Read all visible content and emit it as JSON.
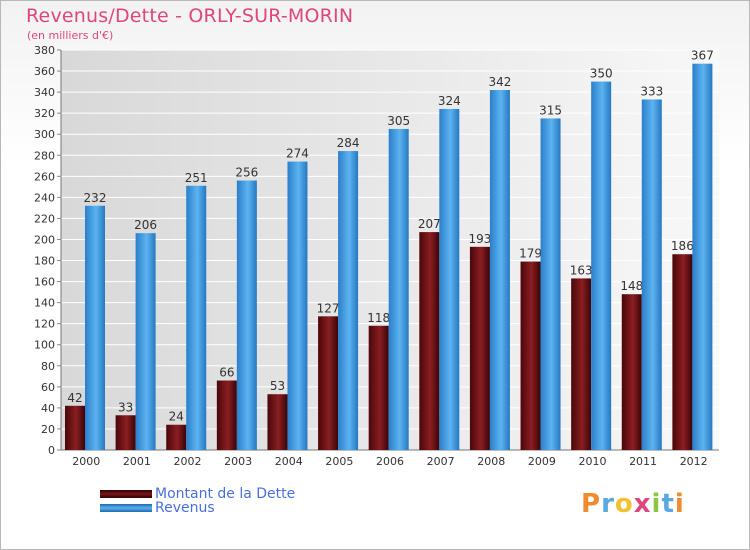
{
  "colors": {
    "title": "#e0457b",
    "dette": "#7a1418",
    "revenus": "#3a93dd",
    "legend_text": "#4a6fdc"
  },
  "chart_data": {
    "type": "bar",
    "title": "Revenus/Dette - ORLY-SUR-MORIN",
    "subtitle": "(en milliers d'€)",
    "categories": [
      "2000",
      "2001",
      "2002",
      "2003",
      "2004",
      "2005",
      "2006",
      "2007",
      "2008",
      "2009",
      "2010",
      "2011",
      "2012"
    ],
    "series": [
      {
        "name": "Montant de la Dette",
        "values": [
          42,
          33,
          24,
          66,
          53,
          127,
          118,
          207,
          193,
          179,
          163,
          148,
          186
        ]
      },
      {
        "name": "Revenus",
        "values": [
          232,
          206,
          251,
          256,
          274,
          284,
          305,
          324,
          342,
          315,
          350,
          333,
          367
        ]
      }
    ],
    "ylim": [
      0,
      380
    ],
    "yticks": [
      0,
      20,
      40,
      60,
      80,
      100,
      120,
      140,
      160,
      180,
      200,
      220,
      240,
      260,
      280,
      300,
      320,
      340,
      360,
      380
    ],
    "grid": true,
    "legend_position": "bottom-left"
  },
  "logo": {
    "text": "Proxiti",
    "letters": [
      {
        "ch": "P",
        "color": "#f28a2e"
      },
      {
        "ch": "r",
        "color": "#5aa8e0"
      },
      {
        "ch": "o",
        "color": "#f2c12e"
      },
      {
        "ch": "x",
        "color": "#e0457b"
      },
      {
        "ch": "i",
        "color": "#8cc63f"
      },
      {
        "ch": "t",
        "color": "#5aa8e0"
      },
      {
        "ch": "i",
        "color": "#f28a2e"
      }
    ]
  }
}
